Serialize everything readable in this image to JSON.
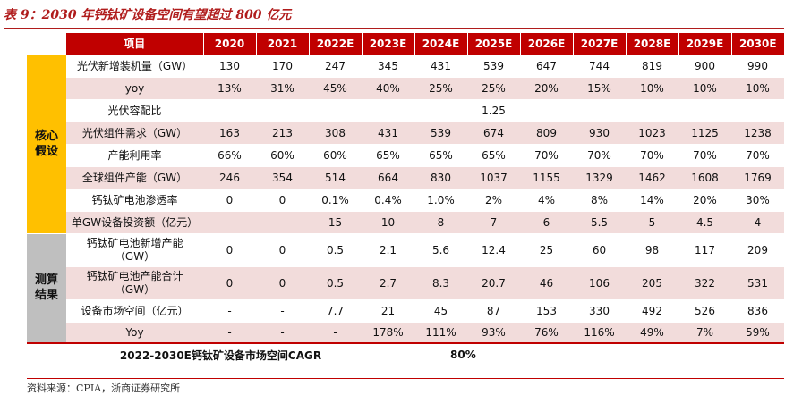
{
  "caption": "表 9：2030 年钙钛矿设备空间有望超过 800 亿元",
  "table": {
    "header": {
      "metric": "项目",
      "years": [
        "2020",
        "2021",
        "2022E",
        "2023E",
        "2024E",
        "2025E",
        "2026E",
        "2027E",
        "2028E",
        "2029E",
        "2030E"
      ]
    },
    "groups": {
      "core": "核心\n假设",
      "calc": "测算\n结果"
    },
    "rows": [
      {
        "label": "光伏新增装机量（GW）",
        "values": [
          "130",
          "170",
          "247",
          "345",
          "431",
          "539",
          "647",
          "744",
          "819",
          "900",
          "990"
        ]
      },
      {
        "label": "yoy",
        "values": [
          "13%",
          "31%",
          "45%",
          "40%",
          "25%",
          "25%",
          "20%",
          "15%",
          "10%",
          "10%",
          "10%"
        ]
      },
      {
        "label": "光伏容配比",
        "values": [
          "",
          "",
          "",
          "",
          "",
          "1.25",
          "",
          "",
          "",
          "",
          ""
        ]
      },
      {
        "label": "光伏组件需求（GW）",
        "values": [
          "163",
          "213",
          "308",
          "431",
          "539",
          "674",
          "809",
          "930",
          "1023",
          "1125",
          "1238"
        ]
      },
      {
        "label": "产能利用率",
        "values": [
          "66%",
          "60%",
          "60%",
          "65%",
          "65%",
          "65%",
          "70%",
          "70%",
          "70%",
          "70%",
          "70%"
        ]
      },
      {
        "label": "全球组件产能（GW）",
        "values": [
          "246",
          "354",
          "514",
          "664",
          "830",
          "1037",
          "1155",
          "1329",
          "1462",
          "1608",
          "1769"
        ]
      },
      {
        "label": "钙钛矿电池渗透率",
        "values": [
          "0",
          "0",
          "0.1%",
          "0.4%",
          "1.0%",
          "2%",
          "4%",
          "8%",
          "14%",
          "20%",
          "30%"
        ]
      },
      {
        "label": "单GW设备投资额（亿元）",
        "values": [
          "-",
          "-",
          "15",
          "10",
          "8",
          "7",
          "6",
          "5.5",
          "5",
          "4.5",
          "4"
        ]
      },
      {
        "label": "钙钛矿电池新增产能\n（GW）",
        "values": [
          "0",
          "0",
          "0.5",
          "2.1",
          "5.6",
          "12.4",
          "25",
          "60",
          "98",
          "117",
          "209"
        ]
      },
      {
        "label": "钙钛矿电池产能合计\n（GW）",
        "values": [
          "0",
          "0",
          "0.5",
          "2.7",
          "8.3",
          "20.7",
          "46",
          "106",
          "205",
          "322",
          "531"
        ]
      },
      {
        "label": "设备市场空间（亿元）",
        "values": [
          "-",
          "-",
          "7.7",
          "21",
          "45",
          "87",
          "153",
          "330",
          "492",
          "526",
          "836"
        ]
      },
      {
        "label": "Yoy",
        "values": [
          "-",
          "-",
          "-",
          "178%",
          "111%",
          "93%",
          "76%",
          "116%",
          "49%",
          "7%",
          "59%"
        ]
      }
    ],
    "total": {
      "label": "2022-2030E钙钛矿设备市场空间CAGR",
      "value": "80%"
    }
  },
  "source": "资料来源：CPIA，浙商证券研究所",
  "colors": {
    "header_bg": "#c00000",
    "core_group_bg": "#ffc000",
    "calc_group_bg": "#bfbfbf",
    "band_bg": "#f2dcdb"
  }
}
